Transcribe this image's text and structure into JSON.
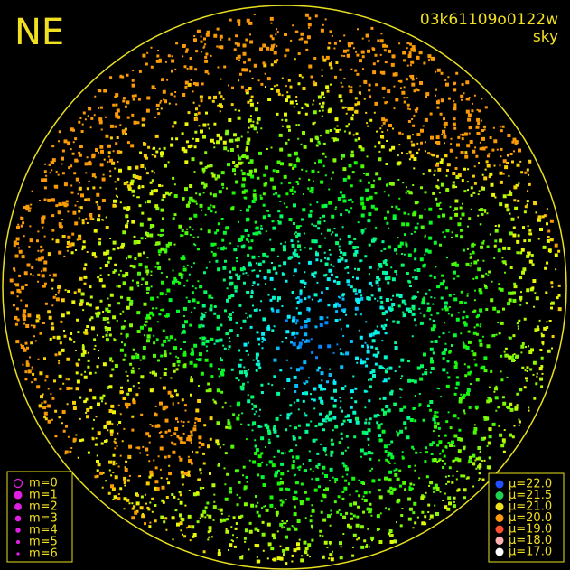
{
  "header": {
    "corner": "NE",
    "frame": "03k61109o0122w",
    "kind": "sky"
  },
  "magnitude_legend": [
    "m=0",
    "m=1",
    "m=2",
    "m=3",
    "m=4",
    "m=5",
    "m=6"
  ],
  "brightness_legend": [
    {
      "label": "μ=22.0",
      "color": "#2050ff"
    },
    {
      "label": "μ=21.5",
      "color": "#20d050"
    },
    {
      "label": "μ=21.0",
      "color": "#f0e020"
    },
    {
      "label": "μ=20.0",
      "color": "#ff9a10"
    },
    {
      "label": "μ=19.0",
      "color": "#ff5030"
    },
    {
      "label": "μ=18.0",
      "color": "#ffb0b0"
    },
    {
      "label": "μ=17.0",
      "color": "#ffffff"
    }
  ]
}
